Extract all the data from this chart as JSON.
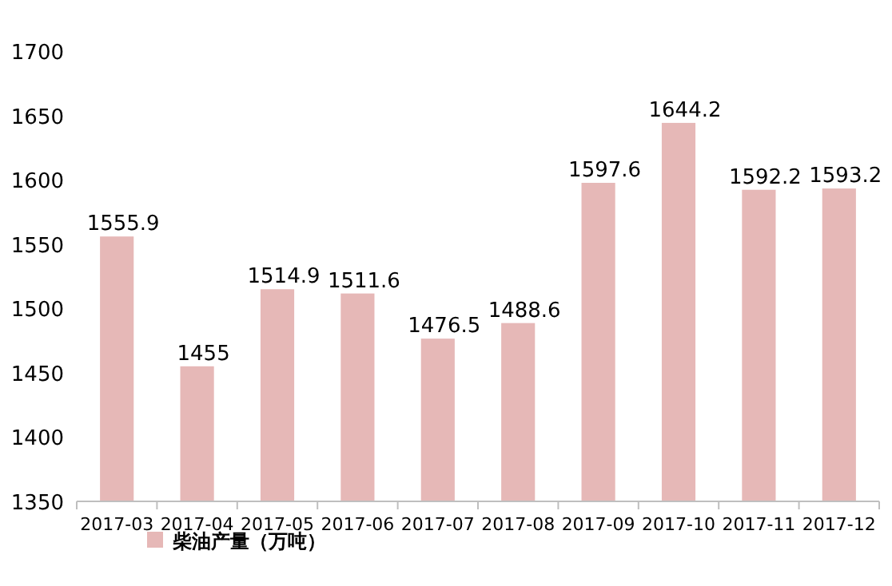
{
  "chart_data": {
    "type": "bar",
    "categories": [
      "2017-03",
      "2017-04",
      "2017-05",
      "2017-06",
      "2017-07",
      "2017-08",
      "2017-09",
      "2017-10",
      "2017-11",
      "2017-12"
    ],
    "series": [
      {
        "name": "柴油产量（万吨）",
        "color": "#e6b8b7",
        "values": [
          1555.9,
          1455,
          1514.9,
          1511.6,
          1476.5,
          1488.6,
          1597.6,
          1644.2,
          1592.2,
          1593.2
        ]
      }
    ],
    "ylim": [
      1350,
      1700
    ],
    "yticks": [
      1350,
      1400,
      1450,
      1500,
      1550,
      1600,
      1650,
      1700
    ],
    "data_labels": true,
    "legend": "bottom"
  }
}
